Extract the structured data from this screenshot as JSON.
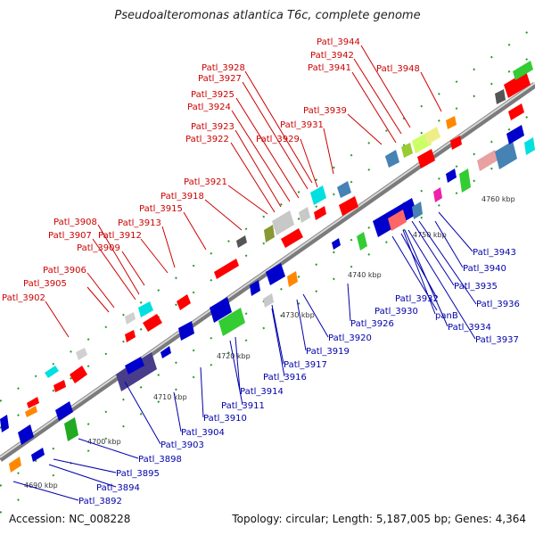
{
  "title": "Pseudoalteromonas atlantica T6c, complete genome",
  "footer": {
    "accession": "Accession: NC_008228",
    "topology": "Topology: circular; Length: 5,187,005 bp; Genes: 4,364"
  },
  "ticks": [
    "4690 kbp",
    "4700 kbp",
    "4710 kbp",
    "4720 kbp",
    "4730 kbp",
    "4740 kbp",
    "4750 kbp",
    "4760 kbp"
  ],
  "labels_top": [
    "Patl_3944",
    "Patl_3942",
    "Patl_3941",
    "Patl_3948",
    "Patl_3928",
    "Patl_3927",
    "Patl_3925",
    "Patl_3924",
    "Patl_3939",
    "Patl_3931",
    "Patl_3923",
    "Patl_3929",
    "Patl_3922",
    "Patl_3921",
    "Patl_3918",
    "Patl_3915",
    "Patl_3908",
    "Patl_3913",
    "Patl_3907",
    "Patl_3912",
    "Patl_3909",
    "Patl_3906",
    "Patl_3905",
    "Patl_3902"
  ],
  "labels_bottom": [
    "Patl_3943",
    "Patl_3940",
    "Patl_3935",
    "Patl_3936",
    "Patl_3932",
    "Patl_3930",
    "panB",
    "Patl_3934",
    "Patl_3937",
    "Patl_3926",
    "Patl_3920",
    "Patl_3919",
    "Patl_3917",
    "Patl_3916",
    "Patl_3914",
    "Patl_3911",
    "Patl_3910",
    "Patl_3904",
    "Patl_3903",
    "Patl_3898",
    "Patl_3895",
    "Patl_3894",
    "Patl_3892"
  ],
  "colors": {
    "top_label": "#cc0000",
    "bottom_label": "#0000aa",
    "backbone": "#8a8a8a"
  }
}
